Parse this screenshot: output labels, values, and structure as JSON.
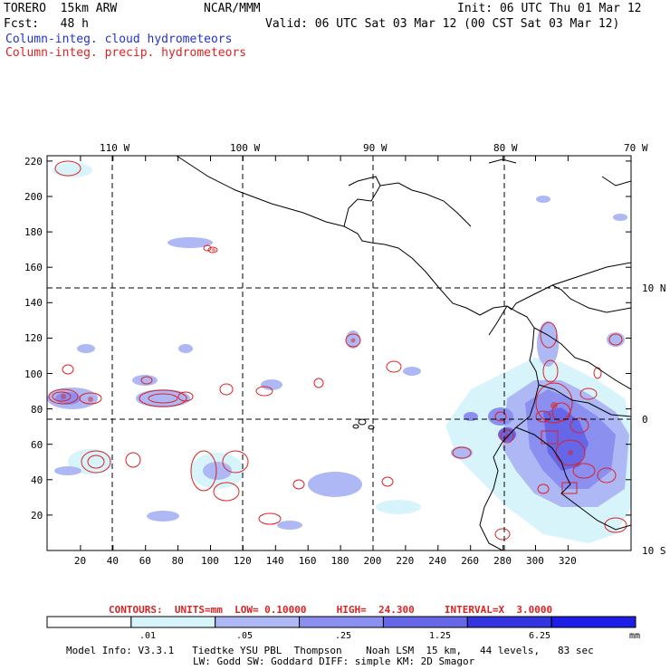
{
  "header": {
    "model": "TORERO  15km ARW",
    "center": "NCAR/MMM",
    "init": "Init: 06 UTC Thu 01 Mar 12",
    "fcst": "Fcst:   48 h",
    "valid": "Valid: 06 UTC Sat 03 Mar 12 (00 CST Sat 03 Mar 12)",
    "field_cloud": "Column-integ. cloud hydrometeors",
    "field_precip": "Column-integ. precip. hydrometeors"
  },
  "map": {
    "lon_labels": [
      "110 W",
      "100 W",
      "90 W",
      "80 W",
      "70 W"
    ],
    "lat_labels": [
      "10 N",
      "0",
      "10 S"
    ],
    "x_ticks": [
      "20",
      "40",
      "60",
      "80",
      "100",
      "120",
      "140",
      "160",
      "180",
      "200",
      "220",
      "240",
      "260",
      "280",
      "300",
      "320"
    ],
    "y_ticks": [
      "220",
      "200",
      "180",
      "160",
      "140",
      "120",
      "100",
      "80",
      "60",
      "40",
      "20"
    ]
  },
  "contours_info": {
    "label": "CONTOURS:  UNITS=mm  LOW= 0.10000     HIGH=  24.300     INTERVAL=X  3.0000"
  },
  "colorbar": {
    "levels": [
      ".01",
      ".05",
      ".25",
      "1.25",
      "6.25"
    ],
    "units": "mm",
    "colors": [
      "#ffffff",
      "#d8f4fb",
      "#adb8f4",
      "#8a8ff0",
      "#6666e8",
      "#3333e0",
      "#1e1ee6"
    ]
  },
  "footer": {
    "line1": "Model Info: V3.3.1   Tiedtke YSU PBL  Thompson    Noah LSM  15 km,   44 levels,   83 sec",
    "line2": "LW: Godd SW: Goddard DIFF: simple KM: 2D Smagor"
  }
}
